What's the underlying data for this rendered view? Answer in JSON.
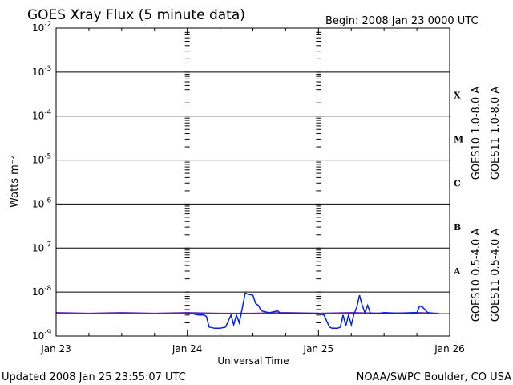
{
  "header": {
    "title": "GOES Xray Flux (5 minute data)",
    "begin": "Begin:  2008 Jan 23 0000 UTC"
  },
  "footer": {
    "updated": "Updated 2008 Jan 25 23:55:07 UTC",
    "credit": "NOAA/SWPC Boulder, CO USA"
  },
  "chart_data": {
    "type": "line",
    "title": "GOES Xray Flux (5 minute data)",
    "xlabel": "Universal Time",
    "ylabel": "Watts m⁻²",
    "y_scale": "log",
    "ylim": [
      1e-09,
      0.01
    ],
    "y_ticks": [
      {
        "base": "10",
        "exp": "-9",
        "value": 1e-09
      },
      {
        "base": "10",
        "exp": "-8",
        "value": 1e-08
      },
      {
        "base": "10",
        "exp": "-7",
        "value": 1e-07
      },
      {
        "base": "10",
        "exp": "-6",
        "value": 1e-06
      },
      {
        "base": "10",
        "exp": "-5",
        "value": 1e-05
      },
      {
        "base": "10",
        "exp": "-4",
        "value": 0.0001
      },
      {
        "base": "10",
        "exp": "-3",
        "value": 0.001
      },
      {
        "base": "10",
        "exp": "-2",
        "value": 0.01
      }
    ],
    "x_days": [
      "Jan 23",
      "Jan 24",
      "Jan 25",
      "Jan 26"
    ],
    "xlim": [
      0,
      72
    ],
    "x_unit": "hours from 2008 Jan 23 0000 UTC",
    "flare_classes": [
      {
        "label": "X",
        "at": 0.0003
      },
      {
        "label": "M",
        "at": 3e-05
      },
      {
        "label": "C",
        "at": 3e-06
      },
      {
        "label": "B",
        "at": 3e-07
      },
      {
        "label": "A",
        "at": 3e-08
      }
    ],
    "grid": true,
    "legend": [
      {
        "label": "GOES10 1.0-8.0 A",
        "color": "#6a2fb0",
        "position": "right"
      },
      {
        "label": "GOES11 1.0-8.0 A",
        "color": "#cc0000",
        "position": "right"
      },
      {
        "label": "GOES10 0.5-4.0 A",
        "color": "#e6a000",
        "position": "right"
      },
      {
        "label": "GOES11 0.5-4.0 A",
        "color": "#0022dd",
        "position": "right"
      }
    ],
    "series": [
      {
        "name": "GOES10 1.0-8.0 A",
        "color": "#6a2fb0",
        "x": [
          0,
          6,
          12,
          18,
          24,
          30,
          36,
          42,
          48,
          54,
          60,
          66,
          70
        ],
        "y": [
          3.4e-09,
          3.3e-09,
          3.4e-09,
          3.3e-09,
          3.4e-09,
          3.3e-09,
          3.3e-09,
          3.4e-09,
          3.3e-09,
          3.4e-09,
          3.3e-09,
          3.4e-09,
          3.3e-09
        ]
      },
      {
        "name": "GOES11 1.0-8.0 A",
        "color": "#cc0000",
        "x": [
          0,
          72
        ],
        "y": [
          3.2e-09,
          3.2e-09
        ]
      },
      {
        "name": "GOES11 0.5-4.0 A",
        "color": "#0022dd",
        "x": [
          24,
          25,
          26,
          27,
          27.5,
          28,
          29,
          30,
          31,
          32,
          32.5,
          33,
          33.5,
          34,
          34.6,
          35,
          36,
          36.5,
          37,
          37.5,
          38,
          39,
          40,
          40.5,
          41,
          42,
          45,
          48,
          49,
          50,
          50.5,
          51.5,
          52,
          52.5,
          53,
          53.5,
          54,
          54.5,
          55,
          55.5,
          56,
          56.5,
          57,
          57.5,
          58,
          59,
          60,
          63,
          66,
          66.5,
          67,
          68,
          69
        ],
        "y": [
          3.3e-09,
          3.2e-09,
          3e-09,
          3e-09,
          2.8e-09,
          1.6e-09,
          1.5e-09,
          1.5e-09,
          1.6e-09,
          3e-09,
          1.8e-09,
          3e-09,
          2e-09,
          4e-09,
          9.5e-09,
          9e-09,
          8.5e-09,
          5.5e-09,
          5e-09,
          3.8e-09,
          3.6e-09,
          3.4e-09,
          3.6e-09,
          3.8e-09,
          3.3e-09,
          3.3e-09,
          3.3e-09,
          3.3e-09,
          3e-09,
          1.6e-09,
          1.5e-09,
          1.5e-09,
          1.6e-09,
          3e-09,
          1.7e-09,
          3e-09,
          1.8e-09,
          3.2e-09,
          4.5e-09,
          8.5e-09,
          5e-09,
          3.4e-09,
          5e-09,
          3.3e-09,
          3.3e-09,
          3.3e-09,
          3.4e-09,
          3.3e-09,
          3.4e-09,
          4.8e-09,
          4.6e-09,
          3.4e-09,
          3.3e-09
        ]
      }
    ]
  }
}
